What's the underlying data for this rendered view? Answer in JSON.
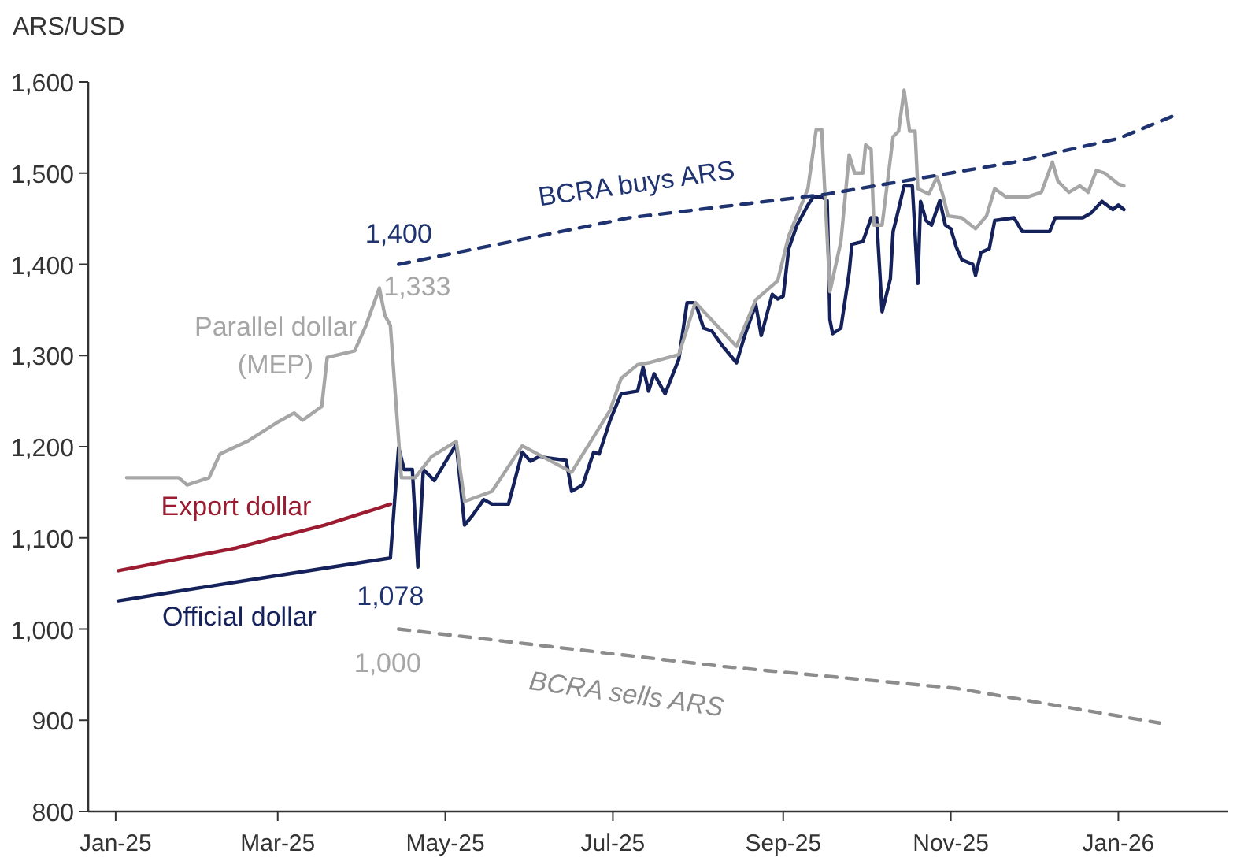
{
  "chart_data": {
    "type": "line",
    "ylabel": "ARS/USD",
    "xlim": [
      "2024-12-22",
      "2026-02-10"
    ],
    "xticks": [
      {
        "value": "2025-01-01",
        "label": "Jan-25"
      },
      {
        "value": "2025-03-01",
        "label": "Mar-25"
      },
      {
        "value": "2025-05-01",
        "label": "May-25"
      },
      {
        "value": "2025-07-01",
        "label": "Jul-25"
      },
      {
        "value": "2025-09-01",
        "label": "Sep-25"
      },
      {
        "value": "2025-11-01",
        "label": "Nov-25"
      },
      {
        "value": "2026-01-01",
        "label": "Jan-26"
      }
    ],
    "ylim": [
      800,
      1600
    ],
    "yticks": [
      800,
      900,
      {
        "value": 1000,
        "label": "1,000"
      },
      {
        "value": 1100,
        "label": "1,100"
      },
      {
        "value": 1200,
        "label": "1,200"
      },
      {
        "value": 1300,
        "label": "1,300"
      },
      {
        "value": 1400,
        "label": "1,400"
      },
      {
        "value": 1500,
        "label": "1,500"
      },
      {
        "value": 1600,
        "label": "1,600"
      }
    ],
    "grid": false,
    "legend": false,
    "marker": "none",
    "series": [
      {
        "name": "Official dollar",
        "color": "#14215a",
        "line_style": "solid",
        "x": [
          "2025-01-02",
          "2025-02-19",
          "2025-04-11",
          "2025-04-14",
          "2025-04-16",
          "2025-04-19",
          "2025-04-21",
          "2025-04-23",
          "2025-04-27",
          "2025-05-05",
          "2025-05-08",
          "2025-05-11",
          "2025-05-15",
          "2025-05-18",
          "2025-05-24",
          "2025-05-29",
          "2025-06-01",
          "2025-06-04",
          "2025-06-14",
          "2025-06-16",
          "2025-06-20",
          "2025-06-24",
          "2025-06-26",
          "2025-06-30",
          "2025-07-04",
          "2025-07-10",
          "2025-07-12",
          "2025-07-14",
          "2025-07-16",
          "2025-07-20",
          "2025-07-25",
          "2025-07-28",
          "2025-07-31",
          "2025-08-03",
          "2025-08-06",
          "2025-08-10",
          "2025-08-15",
          "2025-08-18",
          "2025-08-22",
          "2025-08-24",
          "2025-08-28",
          "2025-08-30",
          "2025-09-01",
          "2025-09-03",
          "2025-09-06",
          "2025-09-10",
          "2025-09-12",
          "2025-09-15",
          "2025-09-17",
          "2025-09-18",
          "2025-09-19",
          "2025-09-22",
          "2025-09-25",
          "2025-09-26",
          "2025-09-30",
          "2025-10-03",
          "2025-10-05",
          "2025-10-07",
          "2025-10-10",
          "2025-10-11",
          "2025-10-12",
          "2025-10-15",
          "2025-10-18",
          "2025-10-20",
          "2025-10-21",
          "2025-10-23",
          "2025-10-25",
          "2025-10-28",
          "2025-10-30",
          "2025-11-01",
          "2025-11-03",
          "2025-11-05",
          "2025-11-09",
          "2025-11-10",
          "2025-11-12",
          "2025-11-15",
          "2025-11-17",
          "2025-11-24",
          "2025-11-27",
          "2025-12-07",
          "2025-12-09",
          "2025-12-19",
          "2025-12-22",
          "2025-12-26",
          "2025-12-30",
          "2026-01-01",
          "2026-01-03"
        ],
        "values": [
          1031,
          1054,
          1078,
          1199,
          1175,
          1175,
          1068,
          1175,
          1163,
          1203,
          1114,
          1125,
          1142,
          1137,
          1137,
          1194,
          1184,
          1189,
          1185,
          1151,
          1158,
          1194,
          1192,
          1229,
          1258,
          1261,
          1287,
          1261,
          1280,
          1258,
          1296,
          1358,
          1358,
          1330,
          1327,
          1310,
          1292,
          1322,
          1356,
          1322,
          1367,
          1362,
          1365,
          1417,
          1443,
          1465,
          1474,
          1474,
          1470,
          1339,
          1324,
          1330,
          1391,
          1422,
          1425,
          1451,
          1451,
          1348,
          1384,
          1436,
          1448,
          1486,
          1486,
          1379,
          1469,
          1448,
          1443,
          1470,
          1443,
          1439,
          1419,
          1405,
          1400,
          1388,
          1413,
          1417,
          1448,
          1451,
          1436,
          1436,
          1451,
          1451,
          1456,
          1469,
          1460,
          1465,
          1460
        ]
      },
      {
        "name": "Export dollar",
        "color": "#9b1b30",
        "line_style": "solid",
        "x": [
          "2025-01-02",
          "2025-02-14",
          "2025-03-18",
          "2025-04-07",
          "2025-04-11"
        ],
        "values": [
          1064,
          1089,
          1114,
          1133,
          1137
        ]
      },
      {
        "name": "Parallel dollar (MEP)",
        "color": "#a6a6a6",
        "line_style": "solid",
        "x": [
          "2025-01-05",
          "2025-01-24",
          "2025-01-27",
          "2025-02-04",
          "2025-02-08",
          "2025-02-18",
          "2025-03-01",
          "2025-03-07",
          "2025-03-10",
          "2025-03-17",
          "2025-03-19",
          "2025-03-29",
          "2025-04-02",
          "2025-04-07",
          "2025-04-09",
          "2025-04-11",
          "2025-04-15",
          "2025-04-20",
          "2025-04-26",
          "2025-05-05",
          "2025-05-08",
          "2025-05-18",
          "2025-05-29",
          "2025-06-16",
          "2025-06-30",
          "2025-07-04",
          "2025-07-10",
          "2025-07-14",
          "2025-07-25",
          "2025-07-31",
          "2025-08-15",
          "2025-08-22",
          "2025-08-30",
          "2025-09-03",
          "2025-09-10",
          "2025-09-13",
          "2025-09-15",
          "2025-09-18",
          "2025-09-22",
          "2025-09-25",
          "2025-09-27",
          "2025-09-30",
          "2025-10-01",
          "2025-10-03",
          "2025-10-04",
          "2025-10-07",
          "2025-10-11",
          "2025-10-13",
          "2025-10-15",
          "2025-10-17",
          "2025-10-19",
          "2025-10-20",
          "2025-10-24",
          "2025-10-27",
          "2025-10-29",
          "2025-10-31",
          "2025-11-05",
          "2025-11-10",
          "2025-11-14",
          "2025-11-17",
          "2025-11-21",
          "2025-11-29",
          "2025-12-04",
          "2025-12-08",
          "2025-12-10",
          "2025-12-14",
          "2025-12-18",
          "2025-12-21",
          "2025-12-24",
          "2025-12-27",
          "2026-01-01",
          "2026-01-03"
        ],
        "values": [
          1166,
          1166,
          1158,
          1166,
          1192,
          1206,
          1227,
          1237,
          1229,
          1244,
          1298,
          1305,
          1332,
          1374,
          1344,
          1333,
          1166,
          1166,
          1189,
          1206,
          1140,
          1151,
          1201,
          1172,
          1240,
          1275,
          1290,
          1292,
          1301,
          1358,
          1310,
          1361,
          1382,
          1431,
          1483,
          1548,
          1548,
          1370,
          1425,
          1520,
          1500,
          1500,
          1531,
          1526,
          1443,
          1443,
          1540,
          1546,
          1591,
          1546,
          1546,
          1483,
          1477,
          1496,
          1477,
          1453,
          1451,
          1439,
          1453,
          1483,
          1474,
          1474,
          1479,
          1512,
          1491,
          1479,
          1486,
          1479,
          1503,
          1500,
          1488,
          1486
        ]
      },
      {
        "name": "BCRA buys ARS",
        "color": "#1f3370",
        "line_style": "dashed",
        "x": [
          "2025-04-14",
          "2025-07-07",
          "2025-09-17",
          "2025-11-24",
          "2026-01-01",
          "2026-01-22"
        ],
        "values": [
          1400,
          1451,
          1477,
          1512,
          1538,
          1564
        ]
      },
      {
        "name": "BCRA sells ARS",
        "color": "#8c8c8c",
        "line_style": "dashed",
        "x": [
          "2025-04-14",
          "2025-08-10",
          "2025-11-03",
          "2026-01-16"
        ],
        "values": [
          1000,
          959,
          935,
          897
        ]
      }
    ],
    "annotations": [
      {
        "text": "1,400",
        "x": "2025-04-14",
        "y": 1400
      },
      {
        "text": "1,333",
        "x": "2025-04-11",
        "y": 1333
      },
      {
        "text": "1,078",
        "x": "2025-04-11",
        "y": 1078
      },
      {
        "text": "1,000",
        "x": "2025-04-14",
        "y": 1000
      }
    ]
  }
}
